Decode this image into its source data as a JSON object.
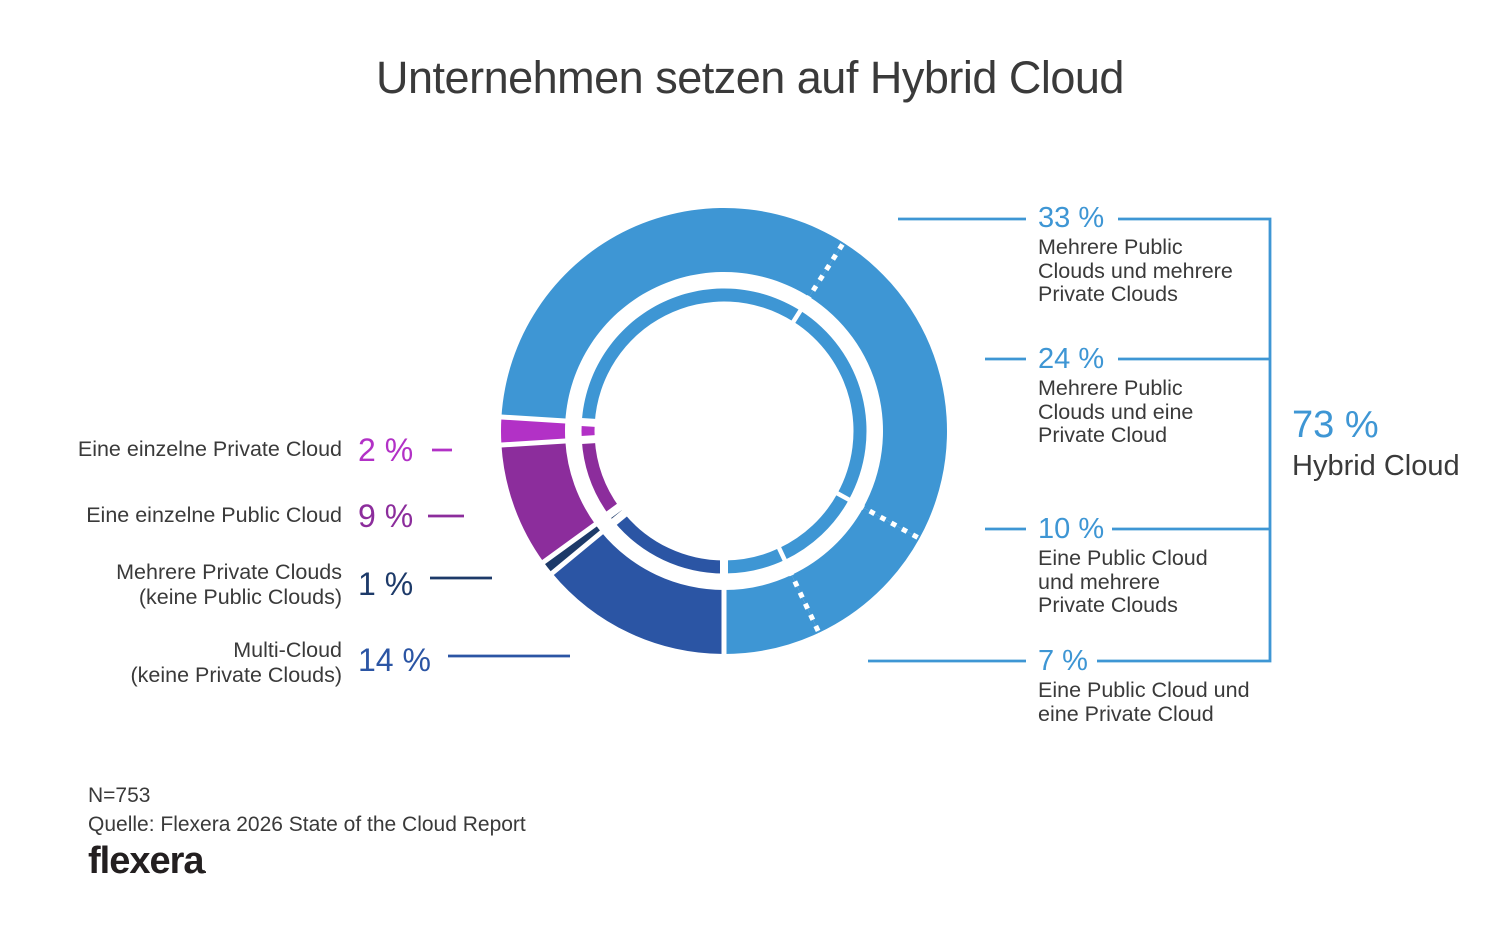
{
  "title": "Unternehmen setzen auf Hybrid Cloud",
  "colors": {
    "light_blue": "#3E96D4",
    "mid_blue": "#2B55A4",
    "navy": "#1D3A69",
    "purple": "#8C2D9C",
    "magenta": "#B231C6",
    "text_dark": "#3A3A3A",
    "white": "#FFFFFF"
  },
  "chart_data": {
    "type": "pie",
    "donut": true,
    "title": "Unternehmen setzen auf Hybrid Cloud",
    "units": "percent",
    "start_angle_deg": 273.6,
    "segments": [
      {
        "label": "Mehrere Public Clouds und mehrere Private Clouds",
        "value": 33,
        "group": "hybrid",
        "color_key": "light_blue"
      },
      {
        "label": "Mehrere Public Clouds und eine Private Cloud",
        "value": 24,
        "group": "hybrid",
        "color_key": "light_blue"
      },
      {
        "label": "Eine Public Cloud und mehrere Private Clouds",
        "value": 10,
        "group": "hybrid",
        "color_key": "light_blue"
      },
      {
        "label": "Eine Public Cloud und eine Private Cloud",
        "value": 7,
        "group": "hybrid",
        "color_key": "light_blue"
      },
      {
        "label": "Multi-Cloud (keine Private Clouds)",
        "value": 14,
        "group": "non_hybrid",
        "color_key": "mid_blue"
      },
      {
        "label": "Mehrere Private Clouds (keine Public Clouds)",
        "value": 1,
        "group": "non_hybrid",
        "color_key": "navy"
      },
      {
        "label": "Eine einzelne Public Cloud",
        "value": 9,
        "group": "non_hybrid",
        "color_key": "purple"
      },
      {
        "label": "Eine einzelne Private Cloud",
        "value": 2,
        "group": "non_hybrid",
        "color_key": "magenta"
      }
    ],
    "group_totals": [
      {
        "label": "Hybrid Cloud",
        "value": 73
      }
    ],
    "sample_note": "N=753",
    "source": "Quelle: Flexera 2026 State of the Cloud Report"
  },
  "right_callouts": [
    {
      "value": "33 %",
      "lines": [
        "Mehrere Public",
        "Clouds und mehrere",
        "Private Clouds"
      ]
    },
    {
      "value": "24 %",
      "lines": [
        "Mehrere Public",
        "Clouds und eine",
        "Private Cloud"
      ]
    },
    {
      "value": "10 %",
      "lines": [
        "Eine Public Cloud",
        "und mehrere",
        "Private Clouds"
      ]
    },
    {
      "value": "7 %",
      "lines": [
        "Eine Public Cloud und",
        "eine Private Cloud"
      ]
    }
  ],
  "hybrid_total": {
    "value": "73 %",
    "label": "Hybrid Cloud"
  },
  "left_callouts": [
    {
      "value": "2 %",
      "lines": [
        "Eine einzelne Private Cloud"
      ],
      "color_key": "magenta"
    },
    {
      "value": "9 %",
      "lines": [
        "Eine einzelne Public Cloud"
      ],
      "color_key": "purple"
    },
    {
      "value": "1 %",
      "lines": [
        "Mehrere Private Clouds",
        "(keine Public Clouds)"
      ],
      "color_key": "navy"
    },
    {
      "value": "14 %",
      "lines": [
        "Multi-Cloud",
        "(keine Private Clouds)"
      ],
      "color_key": "mid_blue"
    }
  ],
  "footer": {
    "sample_note": "N=753",
    "source": "Quelle: Flexera 2026 State of the Cloud Report",
    "logo_text": "flexera",
    "logo_tm": "."
  }
}
